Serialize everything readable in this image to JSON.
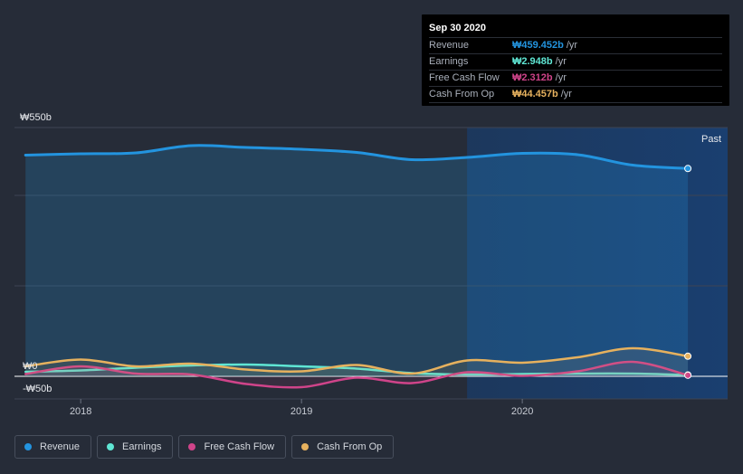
{
  "tooltip": {
    "date": "Sep 30 2020",
    "rows": [
      {
        "label": "Revenue",
        "value": "₩459.452b",
        "unit": "/yr",
        "color": "#2394df"
      },
      {
        "label": "Earnings",
        "value": "₩2.948b",
        "unit": "/yr",
        "color": "#5fe6d4"
      },
      {
        "label": "Free Cash Flow",
        "value": "₩2.312b",
        "unit": "/yr",
        "color": "#d0448a"
      },
      {
        "label": "Cash From Op",
        "value": "₩44.457b",
        "unit": "/yr",
        "color": "#e6b15e"
      }
    ]
  },
  "legend": [
    {
      "label": "Revenue",
      "color": "#2394df"
    },
    {
      "label": "Earnings",
      "color": "#5fe6d4"
    },
    {
      "label": "Free Cash Flow",
      "color": "#d0448a"
    },
    {
      "label": "Cash From Op",
      "color": "#e6b15e"
    }
  ],
  "chart_data": {
    "type": "line",
    "y_tick_labels": [
      "₩550b",
      "₩0",
      "-₩50b"
    ],
    "x_tick_labels": [
      "2018",
      "2019",
      "2020"
    ],
    "ylim": [
      -50,
      550
    ],
    "xlim": [
      2017.7,
      2020.93
    ],
    "past_label": "Past",
    "past_region_start": 2019.75,
    "series": [
      {
        "name": "Revenue",
        "color": "#2394df",
        "fill": true,
        "x": [
          2017.75,
          2018.0,
          2018.25,
          2018.5,
          2018.75,
          2019.0,
          2019.25,
          2019.5,
          2019.75,
          2020.0,
          2020.25,
          2020.5,
          2020.75
        ],
        "y": [
          489,
          492,
          494,
          510,
          506,
          502,
          495,
          479,
          484,
          493,
          490,
          467,
          459.452
        ]
      },
      {
        "name": "Earnings",
        "color": "#5fe6d4",
        "fill": false,
        "x": [
          2017.75,
          2018.0,
          2018.25,
          2018.5,
          2018.75,
          2019.0,
          2019.25,
          2019.5,
          2019.75,
          2020.0,
          2020.25,
          2020.5,
          2020.75
        ],
        "y": [
          10,
          13,
          19,
          24,
          26,
          22,
          17,
          7,
          4,
          5,
          6,
          6,
          2.948
        ]
      },
      {
        "name": "Free Cash Flow",
        "color": "#d0448a",
        "fill": false,
        "x": [
          2017.75,
          2018.0,
          2018.25,
          2018.5,
          2018.75,
          2019.0,
          2019.25,
          2019.5,
          2019.75,
          2020.0,
          2020.25,
          2020.5,
          2020.75
        ],
        "y": [
          5,
          22,
          6,
          4,
          -17,
          -24,
          -3,
          -15,
          9,
          1,
          11,
          32,
          2.312
        ]
      },
      {
        "name": "Cash From Op",
        "color": "#e6b15e",
        "fill": false,
        "x": [
          2017.75,
          2018.0,
          2018.25,
          2018.5,
          2018.75,
          2019.0,
          2019.25,
          2019.5,
          2019.75,
          2020.0,
          2020.25,
          2020.5,
          2020.75
        ],
        "y": [
          22,
          37,
          22,
          28,
          15,
          11,
          25,
          6,
          35,
          30,
          42,
          62,
          44.457
        ]
      }
    ]
  }
}
